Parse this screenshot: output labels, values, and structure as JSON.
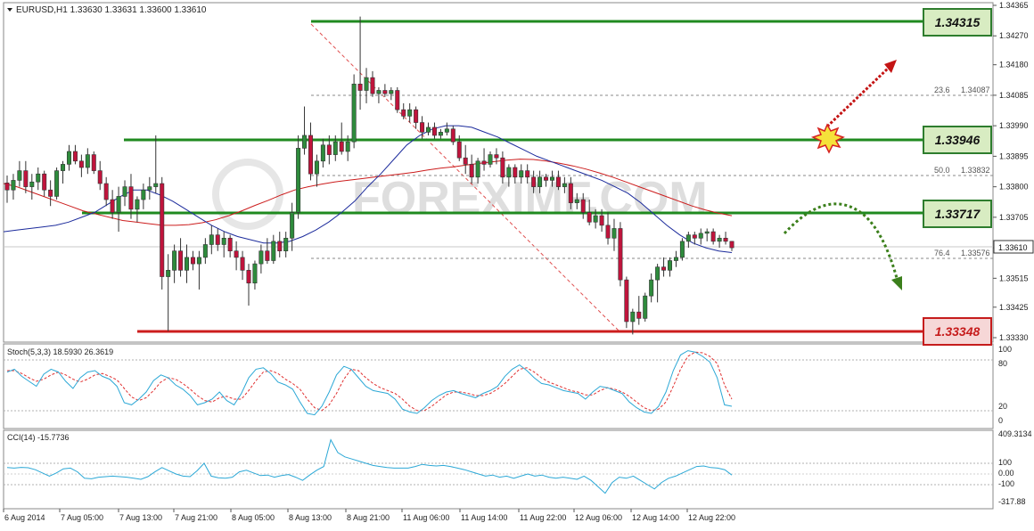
{
  "header": {
    "symbol_line": "EURUSD,H1  1.33630  1.33631  1.33600  1.33610"
  },
  "main_chart": {
    "price_axis_labels": [
      "1.34365",
      "1.34270",
      "1.34180",
      "1.34085",
      "1.33990",
      "1.33895",
      "1.33800",
      "1.33705",
      "1.33610",
      "1.33515",
      "1.33425",
      "1.33330"
    ],
    "current_price": "1.33610",
    "levels": [
      {
        "label": "1.34315",
        "kind": "resistance"
      },
      {
        "label": "1.33946",
        "kind": "resistance"
      },
      {
        "label": "1.33717",
        "kind": "resistance"
      },
      {
        "label": "1.33348",
        "kind": "support"
      }
    ],
    "fib_labels": [
      {
        "ratio": "23.6",
        "price": "1.34087"
      },
      {
        "ratio": "50.0",
        "price": "1.33832"
      },
      {
        "ratio": "76.4",
        "price": "1.33576"
      }
    ],
    "watermark": "FOREXIMF.COM"
  },
  "stoch_panel": {
    "title": "Stoch(5,3,3) 18.5930 26.3619",
    "axis_labels": [
      "100",
      "80",
      "20",
      "0"
    ]
  },
  "cci_panel": {
    "title": "CCI(14) -15.7736",
    "axis_labels": [
      "409.3134",
      "100",
      "0.00",
      "-100",
      "-317.88"
    ]
  },
  "time_axis_labels": [
    "6 Aug 2014",
    "7 Aug 05:00",
    "7 Aug 13:00",
    "7 Aug 21:00",
    "8 Aug 05:00",
    "8 Aug 13:00",
    "8 Aug 21:00",
    "11 Aug 06:00",
    "11 Aug 14:00",
    "11 Aug 22:00",
    "12 Aug 06:00",
    "12 Aug 14:00",
    "12 Aug 22:00"
  ],
  "colors": {
    "resistance_line": "#1f8a1f",
    "support_line": "#cc1d1d",
    "bull_candle": "#2e8b3c",
    "bear_candle": "#c0143c",
    "ma_fast": "#1c2b9c",
    "ma_slow": "#cc1d1d",
    "stoch_main": "#2ca8d6",
    "stoch_signal": "#e03030",
    "cci_line": "#2ca8d6"
  },
  "candles": [
    [
      1.33812,
      1.33835,
      1.3375,
      1.3379
    ],
    [
      1.3379,
      1.3384,
      1.3376,
      1.3382
    ],
    [
      1.3382,
      1.3388,
      1.338,
      1.3385
    ],
    [
      1.3385,
      1.3388,
      1.3378,
      1.338
    ],
    [
      1.338,
      1.3384,
      1.3376,
      1.33815
    ],
    [
      1.33815,
      1.3386,
      1.3379,
      1.3384
    ],
    [
      1.3384,
      1.3385,
      1.3377,
      1.3379
    ],
    [
      1.3379,
      1.3382,
      1.3374,
      1.3377
    ],
    [
      1.3377,
      1.3386,
      1.3376,
      1.3385
    ],
    [
      1.3385,
      1.3388,
      1.3381,
      1.3387
    ],
    [
      1.3387,
      1.3393,
      1.3385,
      1.3391
    ],
    [
      1.3391,
      1.3393,
      1.3387,
      1.3388
    ],
    [
      1.3388,
      1.339,
      1.3383,
      1.3386
    ],
    [
      1.3386,
      1.3392,
      1.3384,
      1.339
    ],
    [
      1.339,
      1.3391,
      1.3384,
      1.3385
    ],
    [
      1.3385,
      1.3388,
      1.3379,
      1.3381
    ],
    [
      1.3381,
      1.3383,
      1.3374,
      1.3376
    ],
    [
      1.3376,
      1.3379,
      1.337,
      1.3372
    ],
    [
      1.3372,
      1.338,
      1.3366,
      1.3377
    ],
    [
      1.3377,
      1.3382,
      1.3374,
      1.338
    ],
    [
      1.338,
      1.3384,
      1.337,
      1.3373
    ],
    [
      1.3373,
      1.3377,
      1.3369,
      1.3376
    ],
    [
      1.3376,
      1.3381,
      1.3373,
      1.3379
    ],
    [
      1.3379,
      1.3383,
      1.3376,
      1.338
    ],
    [
      1.338,
      1.3396,
      1.3378,
      1.3381
    ],
    [
      1.3381,
      1.3383,
      1.3348,
      1.3352
    ],
    [
      1.3352,
      1.3359,
      1.3335,
      1.3354
    ],
    [
      1.3354,
      1.3362,
      1.335,
      1.336
    ],
    [
      1.336,
      1.3364,
      1.3352,
      1.3354
    ],
    [
      1.3354,
      1.3362,
      1.335,
      1.3358
    ],
    [
      1.3358,
      1.336,
      1.3354,
      1.3356
    ],
    [
      1.3356,
      1.336,
      1.3348,
      1.3358
    ],
    [
      1.3358,
      1.3364,
      1.3356,
      1.3362
    ],
    [
      1.3362,
      1.3368,
      1.3359,
      1.3365
    ],
    [
      1.3365,
      1.3367,
      1.336,
      1.3362
    ],
    [
      1.3362,
      1.3366,
      1.3358,
      1.3364
    ],
    [
      1.3364,
      1.3365,
      1.3358,
      1.336
    ],
    [
      1.336,
      1.3363,
      1.3354,
      1.3358
    ],
    [
      1.3358,
      1.336,
      1.3351,
      1.3354
    ],
    [
      1.3354,
      1.3356,
      1.3343,
      1.335
    ],
    [
      1.335,
      1.3357,
      1.3348,
      1.3356
    ],
    [
      1.3356,
      1.3362,
      1.3353,
      1.336
    ],
    [
      1.336,
      1.3364,
      1.3356,
      1.3357
    ],
    [
      1.3357,
      1.3365,
      1.3356,
      1.3363
    ],
    [
      1.3363,
      1.3366,
      1.3358,
      1.336
    ],
    [
      1.336,
      1.3366,
      1.3358,
      1.3364
    ],
    [
      1.3364,
      1.3375,
      1.336,
      1.3372
    ],
    [
      1.3372,
      1.3396,
      1.337,
      1.3392
    ],
    [
      1.3392,
      1.3405,
      1.339,
      1.3396
    ],
    [
      1.3396,
      1.34,
      1.3382,
      1.3384
    ],
    [
      1.3384,
      1.339,
      1.338,
      1.3388
    ],
    [
      1.3388,
      1.3395,
      1.3386,
      1.3393
    ],
    [
      1.3393,
      1.3396,
      1.3387,
      1.339
    ],
    [
      1.339,
      1.3396,
      1.3388,
      1.3394
    ],
    [
      1.3394,
      1.34,
      1.339,
      1.3391
    ],
    [
      1.3391,
      1.3396,
      1.3388,
      1.3394
    ],
    [
      1.3394,
      1.3415,
      1.3392,
      1.3412
    ],
    [
      1.3412,
      1.3433,
      1.3404,
      1.341
    ],
    [
      1.341,
      1.3417,
      1.3406,
      1.3414
    ],
    [
      1.3414,
      1.3416,
      1.3408,
      1.3409
    ],
    [
      1.3409,
      1.3411,
      1.3406,
      1.341
    ],
    [
      1.341,
      1.3412,
      1.3408,
      1.3409
    ],
    [
      1.3409,
      1.3411,
      1.3407,
      1.341
    ],
    [
      1.341,
      1.3411,
      1.3403,
      1.3404
    ],
    [
      1.3404,
      1.3406,
      1.3401,
      1.3402
    ],
    [
      1.3402,
      1.3406,
      1.34,
      1.3404
    ],
    [
      1.3404,
      1.3405,
      1.3398,
      1.34
    ],
    [
      1.34,
      1.3402,
      1.3395,
      1.3397
    ],
    [
      1.3397,
      1.34,
      1.3396,
      1.33985
    ],
    [
      1.33985,
      1.34,
      1.3395,
      1.3396
    ],
    [
      1.3396,
      1.3398,
      1.3395,
      1.3397
    ],
    [
      1.3397,
      1.34,
      1.3396,
      1.3398
    ],
    [
      1.3398,
      1.3399,
      1.3393,
      1.3394
    ],
    [
      1.3394,
      1.3396,
      1.3388,
      1.3389
    ],
    [
      1.3389,
      1.3393,
      1.3384,
      1.3387
    ],
    [
      1.3387,
      1.339,
      1.3381,
      1.3383
    ],
    [
      1.3383,
      1.3389,
      1.3381,
      1.3388
    ],
    [
      1.3388,
      1.3392,
      1.3385,
      1.3387
    ],
    [
      1.3387,
      1.3391,
      1.3386,
      1.339
    ],
    [
      1.339,
      1.3392,
      1.3387,
      1.3389
    ],
    [
      1.3389,
      1.3391,
      1.3381,
      1.3383
    ],
    [
      1.3383,
      1.3387,
      1.338,
      1.3386
    ],
    [
      1.3386,
      1.3387,
      1.3381,
      1.3383
    ],
    [
      1.3383,
      1.3387,
      1.3381,
      1.3385
    ],
    [
      1.3385,
      1.3387,
      1.3381,
      1.3383
    ],
    [
      1.3383,
      1.3385,
      1.3378,
      1.338
    ],
    [
      1.338,
      1.3385,
      1.3378,
      1.3383
    ],
    [
      1.3383,
      1.3384,
      1.338,
      1.3382
    ],
    [
      1.3382,
      1.3385,
      1.338,
      1.3383
    ],
    [
      1.3383,
      1.3385,
      1.3379,
      1.338
    ],
    [
      1.338,
      1.3383,
      1.3378,
      1.3381
    ],
    [
      1.3381,
      1.3383,
      1.3373,
      1.3375
    ],
    [
      1.3375,
      1.3378,
      1.3373,
      1.3376
    ],
    [
      1.3376,
      1.3378,
      1.337,
      1.3372
    ],
    [
      1.3372,
      1.3376,
      1.3368,
      1.3369
    ],
    [
      1.3369,
      1.3373,
      1.3367,
      1.3371
    ],
    [
      1.3371,
      1.3373,
      1.3366,
      1.3368
    ],
    [
      1.3368,
      1.3372,
      1.3362,
      1.3364
    ],
    [
      1.3364,
      1.337,
      1.336,
      1.3367
    ],
    [
      1.3367,
      1.3369,
      1.3349,
      1.3351
    ],
    [
      1.3351,
      1.3352,
      1.3336,
      1.3338
    ],
    [
      1.3338,
      1.3342,
      1.3334,
      1.3341
    ],
    [
      1.3341,
      1.3346,
      1.3337,
      1.3339
    ],
    [
      1.3339,
      1.3347,
      1.3338,
      1.3346
    ],
    [
      1.3346,
      1.3353,
      1.3344,
      1.3351
    ],
    [
      1.3351,
      1.3356,
      1.3344,
      1.3355
    ],
    [
      1.3355,
      1.3358,
      1.3352,
      1.3354
    ],
    [
      1.3354,
      1.3358,
      1.3352,
      1.3357
    ],
    [
      1.3357,
      1.336,
      1.3355,
      1.3358
    ],
    [
      1.3358,
      1.3364,
      1.3357,
      1.3363
    ],
    [
      1.3363,
      1.3366,
      1.3361,
      1.3365
    ],
    [
      1.3365,
      1.3366,
      1.3362,
      1.3364
    ],
    [
      1.3364,
      1.3367,
      1.3362,
      1.33655
    ],
    [
      1.33655,
      1.3367,
      1.3363,
      1.3366
    ],
    [
      1.3366,
      1.3367,
      1.3362,
      1.3363
    ],
    [
      1.3363,
      1.3365,
      1.3361,
      1.3364
    ],
    [
      1.3364,
      1.3366,
      1.3362,
      1.3363
    ],
    [
      1.3363,
      1.33631,
      1.336,
      1.3361
    ]
  ],
  "ma_fast_values": [
    1.3366,
    1.33665,
    1.3367,
    1.33675,
    1.3368,
    1.3369,
    1.33705,
    1.3372,
    1.33745,
    1.3377,
    1.3379,
    1.3379,
    1.33775,
    1.33755,
    1.3373,
    1.33705,
    1.3368,
    1.3366,
    1.33645,
    1.33635,
    1.33625,
    1.33625,
    1.3363,
    1.33645,
    1.33665,
    1.3369,
    1.3372,
    1.33755,
    1.338,
    1.3384,
    1.33885,
    1.3393,
    1.3396,
    1.3398,
    1.3399,
    1.3399,
    1.33985,
    1.3397,
    1.33955,
    1.33935,
    1.33915,
    1.33895,
    1.3388,
    1.33865,
    1.3385,
    1.33835,
    1.3382,
    1.338,
    1.3378,
    1.3375,
    1.33715,
    1.3368,
    1.3365,
    1.33625,
    1.3361,
    1.336,
    1.33595
  ],
  "ma_slow_values": [
    1.3381,
    1.338,
    1.33785,
    1.3377,
    1.33755,
    1.3374,
    1.33725,
    1.33715,
    1.33705,
    1.33695,
    1.3369,
    1.33685,
    1.3368,
    1.3368,
    1.33682,
    1.33688,
    1.33697,
    1.3371,
    1.33725,
    1.33742,
    1.33758,
    1.33775,
    1.3379,
    1.338,
    1.33808,
    1.33815,
    1.3382,
    1.33825,
    1.3383,
    1.33835,
    1.3384,
    1.33845,
    1.33852,
    1.33858,
    1.33862,
    1.33868,
    1.33873,
    1.33878,
    1.33883,
    1.33886,
    1.33885,
    1.3388,
    1.33873,
    1.33865,
    1.33855,
    1.33843,
    1.3383,
    1.33815,
    1.338,
    1.33785,
    1.3377,
    1.33755,
    1.3374,
    1.33728,
    1.33718,
    1.3371
  ],
  "stoch_values": {
    "main": [
      68,
      72,
      62,
      55,
      48,
      65,
      72,
      68,
      55,
      45,
      60,
      68,
      70,
      62,
      58,
      48,
      25,
      22,
      30,
      40,
      56,
      64,
      60,
      50,
      44,
      35,
      22,
      25,
      30,
      40,
      28,
      22,
      38,
      60,
      72,
      74,
      66,
      54,
      50,
      44,
      26,
      10,
      8,
      20,
      40,
      64,
      76,
      72,
      60,
      48,
      42,
      40,
      38,
      30,
      16,
      12,
      10,
      18,
      28,
      35,
      40,
      42,
      38,
      35,
      32,
      38,
      42,
      48,
      62,
      72,
      78,
      70,
      60,
      52,
      50,
      46,
      42,
      40,
      38,
      30,
      40,
      48,
      46,
      42,
      38,
      26,
      18,
      12,
      10,
      20,
      40,
      70,
      92,
      98,
      96,
      90,
      82,
      60,
      22,
      20
    ],
    "signal": [
      70,
      70,
      66,
      60,
      55,
      58,
      64,
      68,
      64,
      58,
      54,
      58,
      64,
      66,
      62,
      57,
      45,
      33,
      28,
      32,
      42,
      54,
      60,
      58,
      52,
      44,
      35,
      28,
      26,
      32,
      34,
      30,
      30,
      42,
      56,
      68,
      70,
      66,
      58,
      52,
      44,
      30,
      18,
      14,
      22,
      38,
      58,
      72,
      70,
      60,
      52,
      46,
      42,
      38,
      30,
      20,
      14,
      14,
      20,
      28,
      36,
      40,
      40,
      38,
      35,
      35,
      38,
      44,
      52,
      62,
      72,
      74,
      68,
      60,
      54,
      50,
      46,
      42,
      40,
      36,
      36,
      42,
      46,
      44,
      40,
      34,
      26,
      18,
      14,
      16,
      26,
      48,
      72,
      90,
      96,
      95,
      90,
      80,
      50,
      30
    ]
  },
  "cci_values": [
    60,
    55,
    62,
    58,
    40,
    10,
    -20,
    10,
    48,
    55,
    20,
    -40,
    -45,
    -30,
    -25,
    -20,
    -25,
    -30,
    -40,
    -50,
    -25,
    20,
    60,
    30,
    0,
    -20,
    -25,
    30,
    100,
    -20,
    -35,
    -40,
    -30,
    20,
    35,
    10,
    -15,
    -10,
    -30,
    -15,
    -5,
    -30,
    -60,
    -10,
    35,
    70,
    320,
    200,
    160,
    140,
    120,
    100,
    80,
    70,
    60,
    55,
    55,
    55,
    70,
    90,
    80,
    75,
    80,
    70,
    55,
    40,
    20,
    0,
    -20,
    -10,
    -30,
    -20,
    -40,
    -20,
    0,
    -20,
    -10,
    -30,
    -40,
    -30,
    -40,
    -50,
    -20,
    -60,
    -120,
    -180,
    -80,
    -30,
    -40,
    -20,
    -60,
    -100,
    -140,
    -80,
    -40,
    -20,
    10,
    40,
    70,
    75,
    60,
    55,
    40,
    -10
  ]
}
